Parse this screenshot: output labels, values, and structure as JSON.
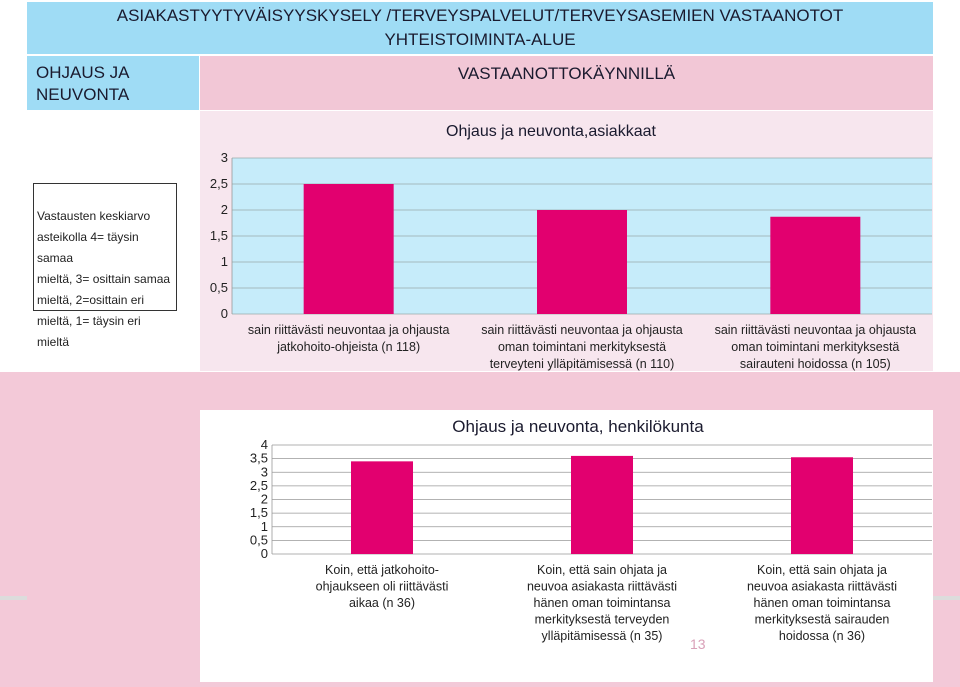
{
  "header": {
    "title_line1": "ASIAKASTYYTYVÄISYYSKYSELY /TERVEYSPALVELUT/TERVEYSASEMIEN VASTAANOTOT",
    "title_line2": "YHTEISTOIMINTA-ALUE",
    "left_label": "OHJAUS JA NEUVONTA",
    "right_label": "VASTAANOTTOKÄYNNILLÄ"
  },
  "legend_note": {
    "lines": [
      "Vastausten keskiarvo",
      "asteikolla 4= täysin samaa",
      "mieltä, 3= osittain samaa",
      "mieltä, 2=osittain eri",
      "mieltä, 1= täysin eri mieltä"
    ]
  },
  "page_number": "13",
  "colors": {
    "bar": "#e2006f",
    "plot_bg": "#c6ecfa",
    "panel_pink": "#f3c9d8",
    "header_blue": "#9fdcf5"
  },
  "chart_data": [
    {
      "type": "bar",
      "title": "Ohjaus ja neuvonta,asiakkaat",
      "ylim": [
        0,
        3
      ],
      "yticks": [
        "0",
        "0,5",
        "1",
        "1,5",
        "2",
        "2,5",
        "3"
      ],
      "categories": [
        [
          "sain riittävästi neuvontaa ja ohjausta",
          "jatkohoito-ohjeista (n 118)"
        ],
        [
          "sain riittävästi neuvontaa ja ohjausta",
          "oman toimintani merkityksestä",
          "terveyteni ylläpitämisessä (n 110)"
        ],
        [
          "sain riittävästi neuvontaa ja ohjausta",
          "oman toimintani merkityksestä",
          "sairauteni hoidossa (n 105)"
        ]
      ],
      "values": [
        2.5,
        2.0,
        1.87
      ],
      "grid": true
    },
    {
      "type": "bar",
      "title": "Ohjaus ja neuvonta, henkilökunta",
      "ylim": [
        0,
        4
      ],
      "yticks": [
        "0",
        "0,5",
        "1",
        "1,5",
        "2",
        "2,5",
        "3",
        "3,5",
        "4"
      ],
      "categories": [
        [
          "Koin, että jatkohoito-",
          "ohjaukseen oli riittävästi",
          "aikaa (n 36)"
        ],
        [
          "Koin, että sain ohjata ja",
          "neuvoa asiakasta riittävästi",
          "hänen oman toimintansa",
          "merkityksestä terveyden",
          "ylläpitämisessä (n 35)"
        ],
        [
          "Koin, että sain ohjata ja",
          "neuvoa asiakasta riittävästi",
          "hänen oman toimintansa",
          "merkityksestä sairauden",
          "hoidossa (n 36)"
        ]
      ],
      "values": [
        3.4,
        3.6,
        3.55
      ],
      "grid": true
    }
  ]
}
